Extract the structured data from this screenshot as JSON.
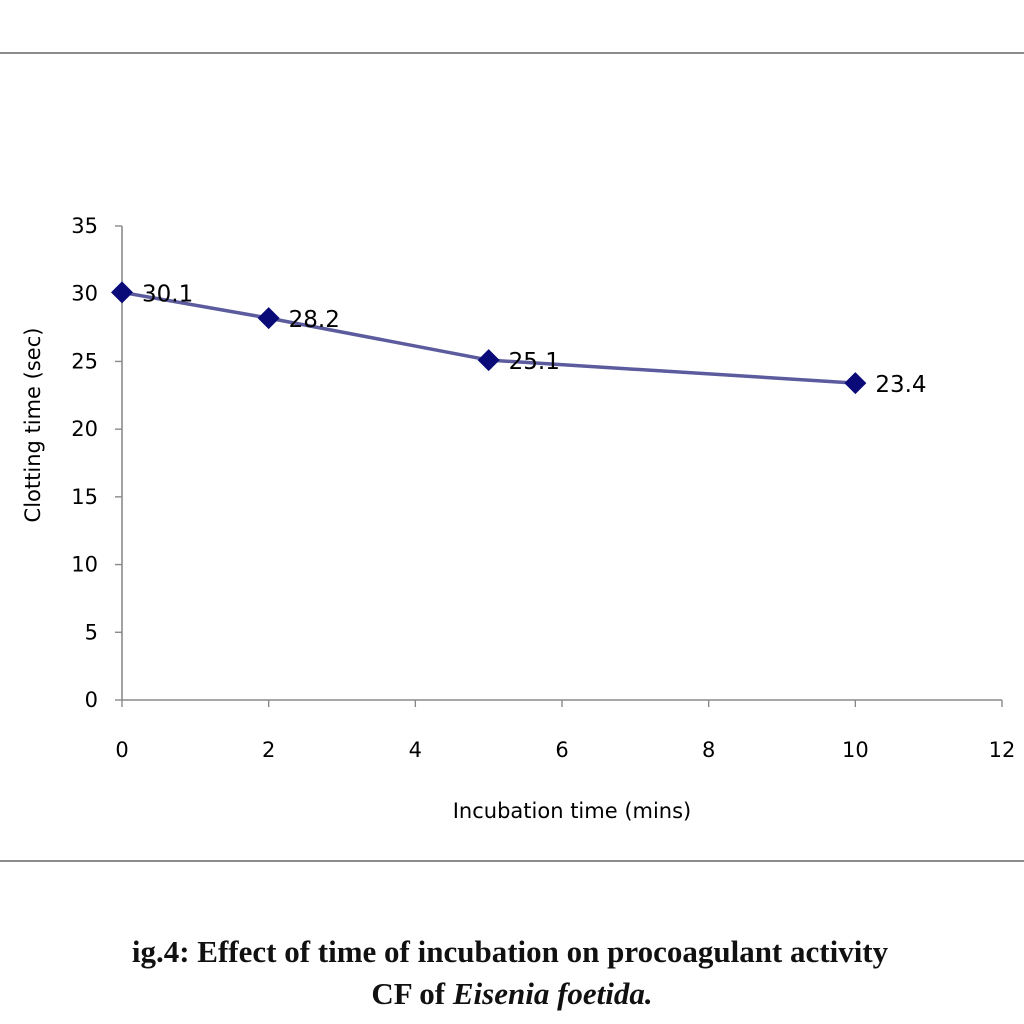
{
  "chart_data": {
    "type": "line",
    "x": [
      0,
      2,
      5,
      10
    ],
    "series": [
      {
        "values": [
          30.1,
          28.2,
          25.1,
          23.4
        ],
        "data_labels": [
          "30.1",
          "28.2",
          "25.1",
          "23.4"
        ]
      }
    ],
    "xlabel": "Incubation time (mins)",
    "ylabel": "Clotting time (sec)",
    "xlim": [
      0,
      12
    ],
    "ylim": [
      0,
      35
    ],
    "x_ticks": [
      "0",
      "2",
      "4",
      "6",
      "8",
      "10",
      "12"
    ],
    "y_ticks": [
      "0",
      "5",
      "10",
      "15",
      "20",
      "25",
      "30",
      "35"
    ],
    "grid": false,
    "legend": "none",
    "line_color": "#5b5b9e",
    "marker_color": "#0a0a78",
    "marker": "diamond"
  },
  "caption": {
    "line1": "ig.4: Effect of time of incubation on procoagulant activity",
    "line2_prefix": "CF of ",
    "line2_species": "Eisenia foetida."
  }
}
